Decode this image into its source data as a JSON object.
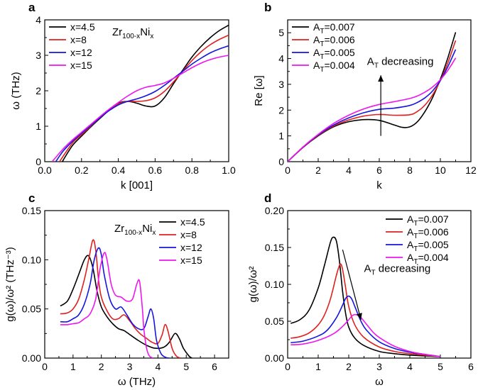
{
  "chart_data": [
    {
      "panel": "a",
      "type": "line",
      "xlabel": "k [001]",
      "ylabel": "ω (THz)",
      "xlim": [
        0,
        1.0
      ],
      "ylim": [
        0,
        4
      ],
      "xticks": [
        "0.0",
        "0.2",
        "0.4",
        "0.6",
        "0.8",
        "1.0"
      ],
      "yticks": [
        "0",
        "1",
        "2",
        "3",
        "4"
      ],
      "annotation": {
        "text": "Zr",
        "sub": "100-x",
        "text2": "Ni",
        "sub2": "x"
      },
      "legend_position": "top-left",
      "series": [
        {
          "name": "x=4.5",
          "color": "#000000",
          "x": [
            0.095,
            0.15,
            0.2,
            0.25,
            0.3,
            0.35,
            0.4,
            0.45,
            0.5,
            0.55,
            0.6,
            0.65,
            0.7,
            0.75,
            0.8,
            0.85,
            0.9,
            0.95,
            1.0
          ],
          "y": [
            0,
            0.45,
            0.72,
            0.98,
            1.22,
            1.45,
            1.65,
            1.7,
            1.65,
            1.57,
            1.57,
            1.8,
            2.2,
            2.58,
            2.95,
            3.25,
            3.5,
            3.7,
            3.85
          ]
        },
        {
          "name": "x=8",
          "color": "#e0201e",
          "x": [
            0.08,
            0.15,
            0.2,
            0.25,
            0.3,
            0.35,
            0.4,
            0.45,
            0.5,
            0.55,
            0.6,
            0.65,
            0.7,
            0.75,
            0.8,
            0.85,
            0.9,
            0.95,
            1.0
          ],
          "y": [
            0,
            0.52,
            0.76,
            1.0,
            1.24,
            1.45,
            1.63,
            1.7,
            1.7,
            1.72,
            1.8,
            1.98,
            2.25,
            2.55,
            2.85,
            3.1,
            3.3,
            3.45,
            3.57
          ]
        },
        {
          "name": "x=12",
          "color": "#1515e0",
          "x": [
            0.06,
            0.1,
            0.15,
            0.2,
            0.25,
            0.3,
            0.35,
            0.4,
            0.45,
            0.5,
            0.55,
            0.6,
            0.65,
            0.7,
            0.75,
            0.8,
            0.85,
            0.9,
            0.95,
            1.0
          ],
          "y": [
            0,
            0.3,
            0.57,
            0.8,
            1.02,
            1.24,
            1.44,
            1.6,
            1.7,
            1.77,
            1.86,
            1.98,
            2.15,
            2.35,
            2.55,
            2.75,
            2.92,
            3.07,
            3.18,
            3.27
          ]
        },
        {
          "name": "x=15",
          "color": "#ee16ee",
          "x": [
            0.04,
            0.1,
            0.15,
            0.2,
            0.25,
            0.3,
            0.35,
            0.4,
            0.45,
            0.5,
            0.55,
            0.6,
            0.65,
            0.7,
            0.75,
            0.8,
            0.85,
            0.9,
            0.95,
            1.0
          ],
          "y": [
            0,
            0.36,
            0.61,
            0.83,
            1.05,
            1.27,
            1.48,
            1.67,
            1.85,
            2.0,
            2.1,
            2.15,
            2.22,
            2.35,
            2.5,
            2.65,
            2.78,
            2.88,
            2.95,
            3.0
          ]
        }
      ]
    },
    {
      "panel": "b",
      "type": "line",
      "xlabel": "k",
      "ylabel": "Re [ω]",
      "xlim": [
        0,
        12
      ],
      "ylim": [
        0,
        5.5
      ],
      "xticks": [
        "0",
        "2",
        "4",
        "6",
        "8",
        "10",
        "12"
      ],
      "yticks": [
        "0",
        "1",
        "2",
        "3",
        "4",
        "5"
      ],
      "legend_position": "top-left",
      "annotation": {
        "text": "A",
        "sub": "T",
        "text2": " decreasing"
      },
      "series": [
        {
          "name_main": "A",
          "name_sub": "T",
          "name_rest": "=0.007",
          "color": "#000000",
          "x": [
            0,
            1,
            2,
            3,
            4,
            5,
            6,
            7,
            7.5,
            8,
            8.5,
            9,
            9.5,
            10,
            10.5,
            11
          ],
          "y": [
            0,
            0.55,
            1.0,
            1.35,
            1.55,
            1.63,
            1.6,
            1.42,
            1.33,
            1.35,
            1.55,
            1.95,
            2.5,
            3.2,
            4.05,
            5.02
          ]
        },
        {
          "name_main": "A",
          "name_sub": "T",
          "name_rest": "=0.006",
          "color": "#e0201e",
          "x": [
            0,
            1,
            2,
            3,
            4,
            5,
            6,
            7,
            8,
            8.5,
            9,
            9.5,
            10,
            10.5,
            11
          ],
          "y": [
            0,
            0.55,
            1.02,
            1.38,
            1.62,
            1.77,
            1.83,
            1.8,
            1.82,
            1.95,
            2.2,
            2.6,
            3.15,
            3.85,
            4.7
          ]
        },
        {
          "name_main": "A",
          "name_sub": "T",
          "name_rest": "=0.005",
          "color": "#1515e0",
          "x": [
            0,
            1,
            2,
            3,
            4,
            5,
            6,
            7,
            8,
            8.5,
            9,
            9.5,
            10,
            10.5,
            11
          ],
          "y": [
            0,
            0.56,
            1.04,
            1.42,
            1.7,
            1.9,
            2.03,
            2.08,
            2.18,
            2.3,
            2.48,
            2.75,
            3.15,
            3.7,
            4.35
          ]
        },
        {
          "name_main": "A",
          "name_sub": "T",
          "name_rest": "=0.004",
          "color": "#ee16ee",
          "x": [
            0,
            1,
            2,
            3,
            4,
            5,
            6,
            7,
            8,
            8.5,
            9,
            9.5,
            10,
            10.5,
            11
          ],
          "y": [
            0,
            0.57,
            1.06,
            1.48,
            1.8,
            2.05,
            2.22,
            2.33,
            2.45,
            2.55,
            2.7,
            2.9,
            3.18,
            3.55,
            4.02
          ]
        }
      ]
    },
    {
      "panel": "c",
      "type": "line",
      "xlabel": "ω (THz)",
      "ylabel": "g(ω)/ω² (THz⁻³)",
      "xlim": [
        0,
        6.5
      ],
      "ylim": [
        0,
        0.15
      ],
      "xticks": [
        "0",
        "1",
        "2",
        "3",
        "4",
        "5",
        "6"
      ],
      "yticks": [
        "0.00",
        "0.05",
        "0.10",
        "0.15"
      ],
      "annotation": {
        "text": "Zr",
        "sub": "100-x",
        "text2": "Ni",
        "sub2": "x"
      },
      "legend_position": "top-right",
      "series": [
        {
          "name": "x=4.5",
          "color": "#000000",
          "x": [
            0.55,
            0.8,
            1.0,
            1.2,
            1.4,
            1.55,
            1.7,
            1.85,
            2.0,
            2.2,
            2.4,
            2.6,
            2.8,
            3.0,
            3.3,
            3.6,
            3.9,
            4.2,
            4.4,
            4.6,
            4.75,
            4.9,
            5.1,
            5.2
          ],
          "y": [
            0.053,
            0.058,
            0.07,
            0.085,
            0.1,
            0.104,
            0.092,
            0.068,
            0.052,
            0.042,
            0.035,
            0.03,
            0.028,
            0.024,
            0.018,
            0.013,
            0.01,
            0.011,
            0.016,
            0.025,
            0.02,
            0.01,
            0.002,
            0
          ]
        },
        {
          "name": "x=8",
          "color": "#e0201e",
          "x": [
            0.55,
            0.8,
            1.0,
            1.2,
            1.4,
            1.55,
            1.7,
            1.8,
            1.9,
            2.0,
            2.2,
            2.4,
            2.6,
            2.8,
            3.0,
            3.2,
            3.4,
            3.6,
            3.8,
            4.0,
            4.15,
            4.25,
            4.35,
            4.5,
            4.65,
            4.8
          ],
          "y": [
            0.045,
            0.046,
            0.05,
            0.06,
            0.08,
            0.1,
            0.12,
            0.11,
            0.08,
            0.062,
            0.048,
            0.04,
            0.04,
            0.044,
            0.038,
            0.03,
            0.024,
            0.02,
            0.016,
            0.015,
            0.024,
            0.034,
            0.028,
            0.01,
            0.002,
            0
          ]
        },
        {
          "name": "x=12",
          "color": "#1515e0",
          "x": [
            0.55,
            0.8,
            1.0,
            1.2,
            1.4,
            1.6,
            1.75,
            1.9,
            2.0,
            2.1,
            2.3,
            2.5,
            2.7,
            2.9,
            3.1,
            3.3,
            3.5,
            3.65,
            3.75,
            3.85,
            3.95,
            4.1,
            4.25,
            4.4
          ],
          "y": [
            0.037,
            0.037,
            0.04,
            0.044,
            0.055,
            0.075,
            0.1,
            0.112,
            0.105,
            0.085,
            0.06,
            0.05,
            0.052,
            0.044,
            0.035,
            0.03,
            0.03,
            0.042,
            0.05,
            0.04,
            0.018,
            0.005,
            0.001,
            0
          ]
        },
        {
          "name": "x=15",
          "color": "#ee16ee",
          "x": [
            0.55,
            0.8,
            1.0,
            1.2,
            1.4,
            1.6,
            1.8,
            1.95,
            2.1,
            2.2,
            2.35,
            2.5,
            2.7,
            2.9,
            3.1,
            3.25,
            3.35,
            3.45,
            3.5,
            3.6,
            3.7,
            3.85
          ],
          "y": [
            0.034,
            0.034,
            0.035,
            0.036,
            0.04,
            0.045,
            0.06,
            0.09,
            0.107,
            0.1,
            0.075,
            0.064,
            0.062,
            0.058,
            0.06,
            0.075,
            0.078,
            0.05,
            0.03,
            0.01,
            0.002,
            0
          ]
        }
      ]
    },
    {
      "panel": "d",
      "type": "line",
      "xlabel": "ω",
      "ylabel": "g(ω)/ω²",
      "xlim": [
        0,
        6
      ],
      "ylim": [
        0,
        0.2
      ],
      "xticks": [
        "0",
        "1",
        "2",
        "3",
        "4",
        "5",
        "6"
      ],
      "yticks": [
        "0.00",
        "0.05",
        "0.10",
        "0.15",
        "0.20"
      ],
      "legend_position": "top-right",
      "annotation": {
        "text": "A",
        "sub": "T",
        "text2": " decreasing"
      },
      "series": [
        {
          "name_main": "A",
          "name_sub": "T",
          "name_rest": "=0.007",
          "color": "#000000",
          "x": [
            0.1,
            0.4,
            0.7,
            1.0,
            1.2,
            1.4,
            1.5,
            1.6,
            1.7,
            1.8,
            1.9,
            2.0,
            2.2,
            2.5,
            3.0,
            3.5,
            4.0,
            4.5,
            5.0
          ],
          "y": [
            0.047,
            0.052,
            0.065,
            0.095,
            0.125,
            0.157,
            0.164,
            0.158,
            0.13,
            0.09,
            0.06,
            0.042,
            0.027,
            0.017,
            0.009,
            0.006,
            0.004,
            0.003,
            0.002
          ]
        },
        {
          "name_main": "A",
          "name_sub": "T",
          "name_rest": "=0.006",
          "color": "#e0201e",
          "x": [
            0.1,
            0.4,
            0.7,
            1.0,
            1.2,
            1.4,
            1.6,
            1.7,
            1.75,
            1.8,
            1.9,
            2.0,
            2.2,
            2.5,
            3.0,
            3.5,
            4.0,
            4.5,
            5.0
          ],
          "y": [
            0.027,
            0.029,
            0.034,
            0.045,
            0.058,
            0.08,
            0.113,
            0.126,
            0.127,
            0.12,
            0.095,
            0.07,
            0.045,
            0.028,
            0.015,
            0.009,
            0.006,
            0.004,
            0.002
          ]
        },
        {
          "name_main": "A",
          "name_sub": "T",
          "name_rest": "=0.005",
          "color": "#1515e0",
          "x": [
            0.1,
            0.5,
            1.0,
            1.3,
            1.6,
            1.8,
            1.9,
            2.0,
            2.1,
            2.2,
            2.4,
            2.6,
            3.0,
            3.5,
            4.0,
            4.5,
            5.0
          ],
          "y": [
            0.021,
            0.023,
            0.03,
            0.038,
            0.055,
            0.072,
            0.081,
            0.084,
            0.08,
            0.07,
            0.05,
            0.037,
            0.022,
            0.013,
            0.008,
            0.005,
            0.002
          ]
        },
        {
          "name_main": "A",
          "name_sub": "T",
          "name_rest": "=0.004",
          "color": "#ee16ee",
          "x": [
            0.1,
            0.5,
            1.0,
            1.5,
            1.8,
            2.0,
            2.1,
            2.2,
            2.3,
            2.4,
            2.6,
            2.8,
            3.0,
            3.5,
            4.0,
            4.5,
            5.0
          ],
          "y": [
            0.018,
            0.019,
            0.024,
            0.033,
            0.043,
            0.052,
            0.057,
            0.059,
            0.058,
            0.055,
            0.045,
            0.035,
            0.028,
            0.016,
            0.009,
            0.005,
            0.002
          ]
        }
      ]
    }
  ]
}
